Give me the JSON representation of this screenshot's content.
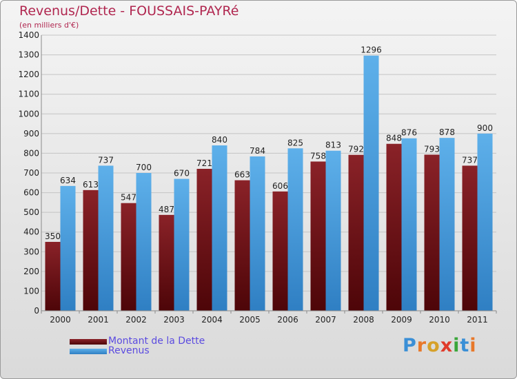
{
  "chart_data": {
    "type": "bar",
    "title": "Revenus/Dette - FOUSSAIS-PAYRé",
    "subtitle": "(en milliers d'€)",
    "categories": [
      "2000",
      "2001",
      "2002",
      "2003",
      "2004",
      "2005",
      "2006",
      "2007",
      "2008",
      "2009",
      "2010",
      "2011"
    ],
    "series": [
      {
        "name": "Montant de la Dette",
        "color": "#7a1a1f",
        "values": [
          350,
          613,
          547,
          487,
          721,
          663,
          606,
          758,
          792,
          848,
          793,
          737
        ]
      },
      {
        "name": "Revenus",
        "color": "#4fa3e0",
        "values": [
          634,
          737,
          700,
          670,
          840,
          784,
          825,
          813,
          1296,
          876,
          878,
          900
        ]
      }
    ],
    "ylim": [
      0,
      1400
    ],
    "yticks": [
      0,
      100,
      200,
      300,
      400,
      500,
      600,
      700,
      800,
      900,
      1000,
      1100,
      1200,
      1300,
      1400
    ],
    "grid": true,
    "legend_position": "bottom-left"
  },
  "watermark": {
    "text": "Proxiti"
  }
}
